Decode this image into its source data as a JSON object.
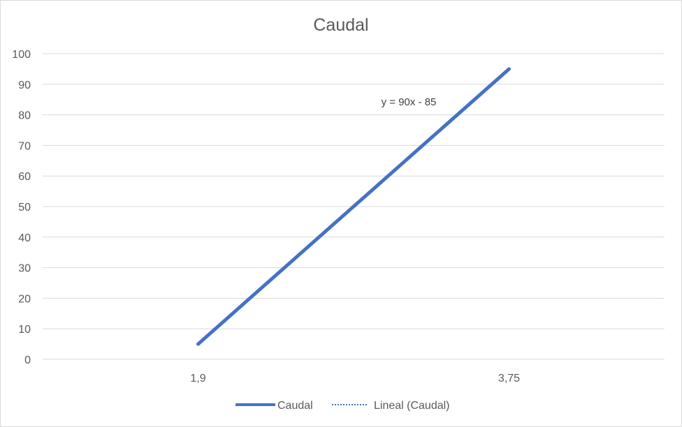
{
  "chart_data": {
    "type": "line",
    "title": "Caudal",
    "categories": [
      "1,9",
      "3,75"
    ],
    "series": [
      {
        "name": "Caudal",
        "values": [
          5,
          95
        ]
      }
    ],
    "trendline": {
      "name": "Lineal (Caudal)",
      "type": "linear",
      "equation": "y = 90x - 85"
    },
    "ylim": [
      0,
      100
    ],
    "y_ticks": [
      "0",
      "10",
      "20",
      "30",
      "40",
      "50",
      "60",
      "70",
      "80",
      "90",
      "100"
    ],
    "grid": true,
    "legend_position": "bottom",
    "colors": {
      "series": "#4472c4",
      "grid": "#d9d9d9",
      "text": "#595959"
    }
  }
}
